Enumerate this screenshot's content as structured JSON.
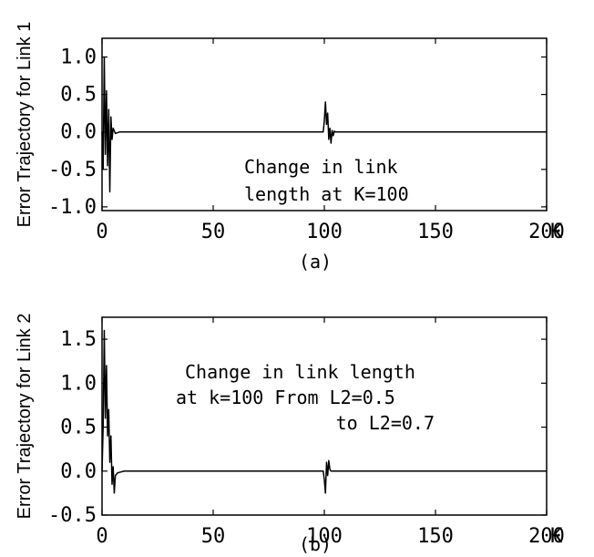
{
  "chart_data": [
    {
      "id": "a",
      "type": "line",
      "caption": "(a)",
      "ylabel": "Error Trajectory for Link 1",
      "x_unit": "K",
      "xlim": [
        0,
        200
      ],
      "ylim": [
        -1.05,
        1.25
      ],
      "xticks": [
        0,
        50,
        100,
        150,
        200
      ],
      "xtick_labels": [
        "0",
        "50",
        "100",
        "150",
        "200"
      ],
      "yticks": [
        1.0,
        0.5,
        0.0,
        -0.5,
        -1.0
      ],
      "ytick_labels": [
        "1.0",
        "0.5",
        "0.0",
        "-0.5",
        "-1.0"
      ],
      "annotation": [
        "Change in link",
        "length at K=100"
      ],
      "series": [
        {
          "x": [
            0,
            0.5,
            1,
            1.5,
            2,
            2.5,
            3,
            3.5,
            4,
            4.5,
            5,
            6,
            8,
            20,
            60,
            99.5,
            100,
            100.5,
            101,
            101.5,
            102,
            102.5,
            103,
            103.5,
            104,
            104.5,
            105,
            107,
            150,
            200
          ],
          "y": [
            0,
            -0.5,
            1.0,
            -0.3,
            0.55,
            -0.45,
            0.3,
            -0.8,
            0.2,
            -0.1,
            0.05,
            -0.02,
            0,
            0,
            0,
            0,
            0.15,
            0.4,
            0.1,
            0.25,
            -0.1,
            0.05,
            -0.15,
            0.02,
            -0.05,
            0.01,
            0,
            0,
            0,
            0
          ]
        }
      ]
    },
    {
      "id": "b",
      "type": "line",
      "caption": "(b)",
      "ylabel": "Error Trajectory for Link 2",
      "x_unit": "K",
      "xlim": [
        0,
        200
      ],
      "ylim": [
        -0.5,
        1.75
      ],
      "xticks": [
        0,
        50,
        100,
        150,
        200
      ],
      "xtick_labels": [
        "0",
        "50",
        "100",
        "150",
        "200"
      ],
      "yticks": [
        1.5,
        1.0,
        0.5,
        0.0,
        -0.5
      ],
      "ytick_labels": [
        "1.5",
        "1.0",
        "0.5",
        "0.0",
        "-0.5"
      ],
      "annotation": [
        "Change in link length",
        "at k=100 From L2=0.5",
        "to L2=0.7"
      ],
      "series": [
        {
          "x": [
            0,
            0.5,
            1,
            1.5,
            2,
            2.5,
            3,
            3.5,
            4,
            4.5,
            5,
            5.5,
            6,
            7,
            10,
            50,
            99.5,
            100,
            100.5,
            101,
            101.5,
            102,
            102.5,
            103,
            104,
            150,
            200
          ],
          "y": [
            0,
            0.5,
            1.6,
            0.6,
            1.2,
            0.4,
            0.7,
            0.1,
            0.4,
            -0.15,
            0.05,
            -0.25,
            -0.05,
            -0.02,
            0,
            0,
            0,
            -0.1,
            -0.25,
            0.1,
            -0.05,
            0.12,
            0.02,
            0,
            0,
            0,
            0
          ]
        }
      ]
    }
  ]
}
